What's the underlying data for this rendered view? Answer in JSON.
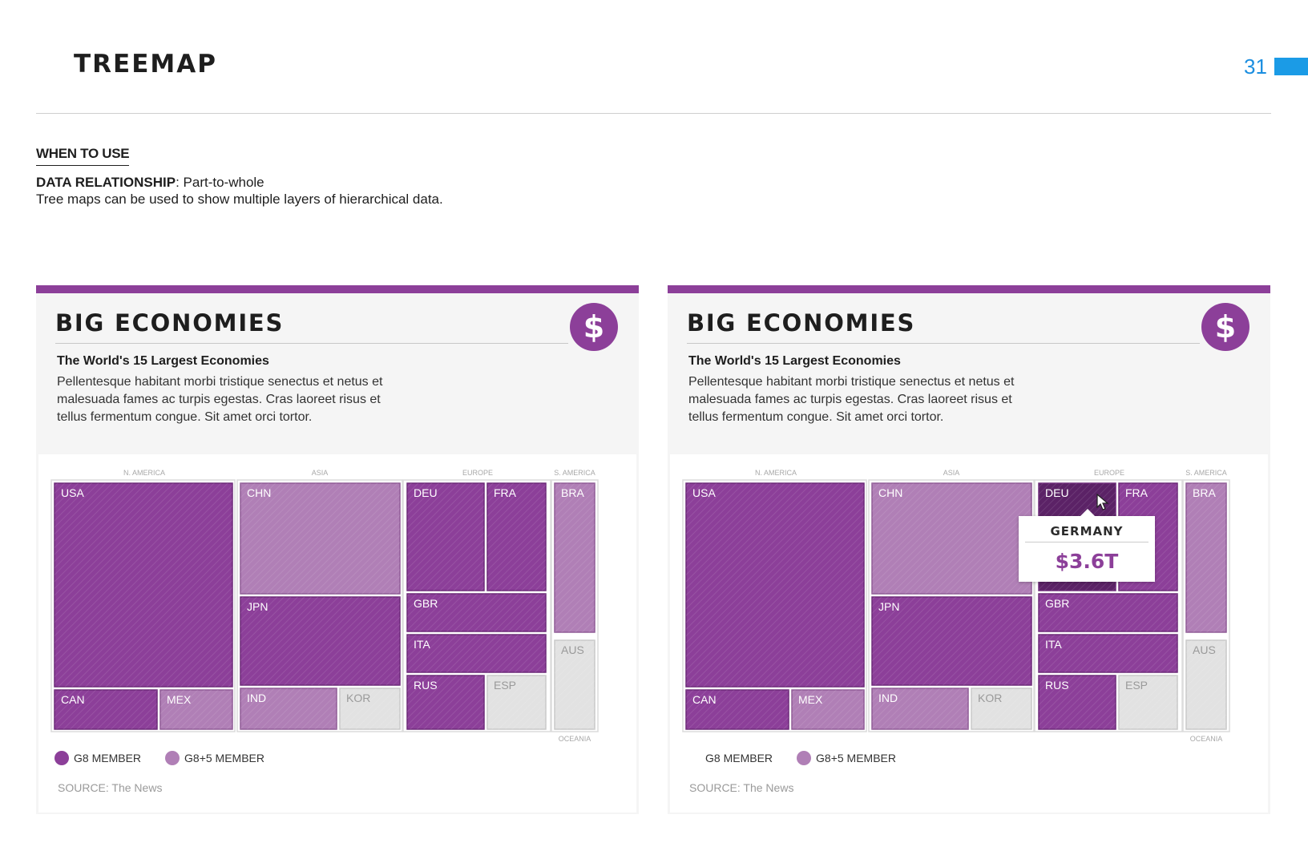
{
  "page": {
    "title": "TREEMAP",
    "number": "31",
    "accent_color": "#1b9be6"
  },
  "intro": {
    "heading": "WHEN TO USE",
    "relationship_label": "DATA RELATIONSHIP",
    "relationship_value": ": Part-to-whole",
    "description": "Tree maps can be used to show multiple layers of hierarchical data."
  },
  "cards": [
    {
      "title": "BIG ECONOMIES",
      "badge_icon": "dollar-icon",
      "badge_symbol": "$",
      "subtitle": "The World's 15 Largest Economies",
      "body": "Pellentesque habitant morbi tristique senectus et netus et malesuada fames ac turpis egestas. Cras laoreet risus et tellus fermentum congue. Sit amet orci tortor.",
      "legend": {
        "g8": "G8 MEMBER",
        "g8plus5": "G8+5 MEMBER"
      },
      "source": "SOURCE: The News"
    },
    {
      "title": "BIG ECONOMIES",
      "badge_icon": "dollar-icon",
      "badge_symbol": "$",
      "subtitle": "The World's 15 Largest Economies",
      "body": "Pellentesque habitant morbi tristique senectus et netus et malesuada fames ac turpis egestas. Cras laoreet risus et tellus fermentum congue. Sit amet orci tortor.",
      "legend": {
        "g8": "G8 MEMBER",
        "g8plus5": "G8+5 MEMBER"
      },
      "source": "SOURCE: The News",
      "tooltip": {
        "country": "GERMANY",
        "value": "$3.6T",
        "highlight": "DEU"
      }
    }
  ],
  "colors": {
    "card_bar": "#8c3f99",
    "g8": "#8c3f99",
    "g8plus5": "#b07fb6",
    "other": "#e2e2e2",
    "highlight": "#5b2266"
  },
  "chart_data": {
    "type": "treemap",
    "regions": [
      {
        "name": "N. AMERICA",
        "countries": [
          {
            "code": "USA",
            "group": "g8"
          },
          {
            "code": "CAN",
            "group": "g8"
          },
          {
            "code": "MEX",
            "group": "g8plus5"
          }
        ]
      },
      {
        "name": "ASIA",
        "countries": [
          {
            "code": "CHN",
            "group": "g8plus5"
          },
          {
            "code": "JPN",
            "group": "g8"
          },
          {
            "code": "IND",
            "group": "g8plus5"
          },
          {
            "code": "KOR",
            "group": "other"
          }
        ]
      },
      {
        "name": "EUROPE",
        "countries": [
          {
            "code": "DEU",
            "group": "g8"
          },
          {
            "code": "FRA",
            "group": "g8"
          },
          {
            "code": "GBR",
            "group": "g8"
          },
          {
            "code": "ITA",
            "group": "g8"
          },
          {
            "code": "RUS",
            "group": "g8"
          },
          {
            "code": "ESP",
            "group": "other"
          }
        ]
      },
      {
        "name": "S. AMERICA",
        "countries": [
          {
            "code": "BRA",
            "group": "g8plus5"
          }
        ]
      },
      {
        "name": "OCEANIA",
        "countries": [
          {
            "code": "AUS",
            "group": "other"
          }
        ]
      }
    ]
  }
}
